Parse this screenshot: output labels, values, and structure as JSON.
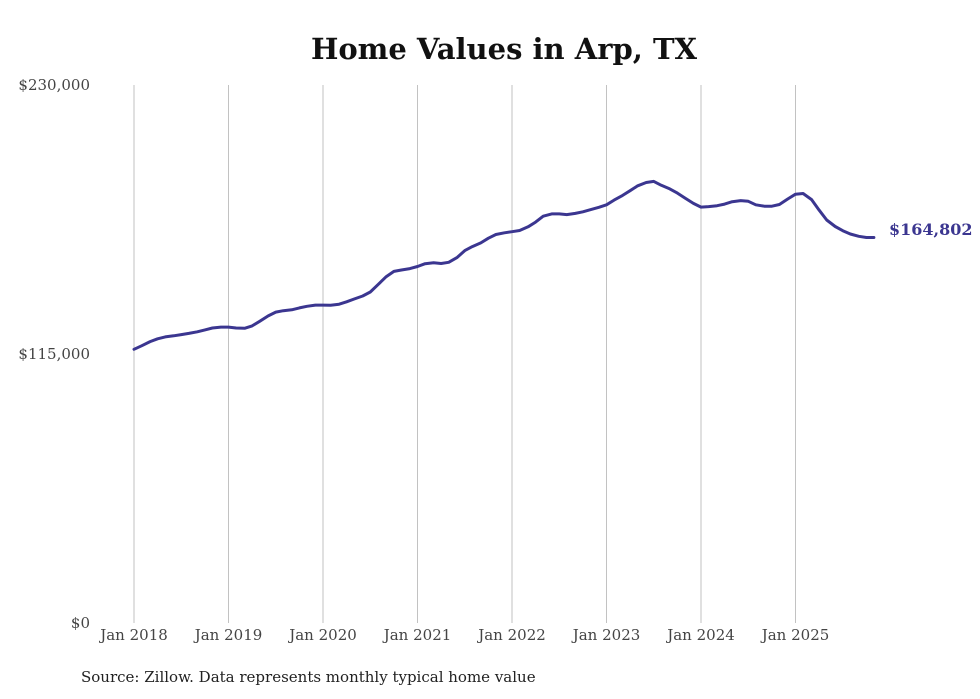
{
  "colors": {
    "line": "#3b3690",
    "end_label": "#3b3690"
  },
  "chart_data": {
    "type": "line",
    "title": "Home Values in Arp, TX",
    "xlabel": "",
    "ylabel": "",
    "ylim": [
      0,
      230000
    ],
    "xlim": [
      2018.0,
      2025.9
    ],
    "y_ticks": [
      {
        "value": 0,
        "label": "$0"
      },
      {
        "value": 115000,
        "label": "$115,000"
      },
      {
        "value": 230000,
        "label": "$230,000"
      }
    ],
    "x_ticks": [
      {
        "value": 2018,
        "label": "Jan 2018"
      },
      {
        "value": 2019,
        "label": "Jan 2019"
      },
      {
        "value": 2020,
        "label": "Jan 2020"
      },
      {
        "value": 2021,
        "label": "Jan 2021"
      },
      {
        "value": 2022,
        "label": "Jan 2022"
      },
      {
        "value": 2023,
        "label": "Jan 2023"
      },
      {
        "value": 2024,
        "label": "Jan 2024"
      },
      {
        "value": 2025,
        "label": "Jan 2025"
      }
    ],
    "grid": {
      "vertical": true,
      "horizontal": false
    },
    "end_label": "$164,802",
    "series": [
      {
        "name": "Typical home value",
        "x": [
          2018.0,
          2018.08,
          2018.17,
          2018.25,
          2018.33,
          2018.42,
          2018.5,
          2018.58,
          2018.67,
          2018.75,
          2018.83,
          2018.92,
          2019.0,
          2019.08,
          2019.17,
          2019.25,
          2019.33,
          2019.42,
          2019.5,
          2019.58,
          2019.67,
          2019.75,
          2019.83,
          2019.92,
          2020.0,
          2020.08,
          2020.17,
          2020.25,
          2020.33,
          2020.42,
          2020.5,
          2020.58,
          2020.67,
          2020.75,
          2020.83,
          2020.92,
          2021.0,
          2021.08,
          2021.17,
          2021.25,
          2021.33,
          2021.42,
          2021.5,
          2021.58,
          2021.67,
          2021.75,
          2021.83,
          2021.92,
          2022.0,
          2022.08,
          2022.17,
          2022.25,
          2022.33,
          2022.42,
          2022.5,
          2022.58,
          2022.67,
          2022.75,
          2022.83,
          2022.92,
          2023.0,
          2023.08,
          2023.17,
          2023.25,
          2023.33,
          2023.42,
          2023.5,
          2023.58,
          2023.67,
          2023.75,
          2023.83,
          2023.92,
          2024.0,
          2024.08,
          2024.17,
          2024.25,
          2024.33,
          2024.42,
          2024.5,
          2024.58,
          2024.67,
          2024.75,
          2024.83,
          2024.92,
          2025.0,
          2025.08,
          2025.17,
          2025.25,
          2025.33,
          2025.42,
          2025.5,
          2025.58,
          2025.67,
          2025.75,
          2025.83
        ],
        "values": [
          117000,
          118500,
          120300,
          121500,
          122300,
          122800,
          123300,
          123800,
          124500,
          125300,
          126100,
          126500,
          126500,
          126100,
          126000,
          127000,
          129000,
          131300,
          132900,
          133500,
          133900,
          134700,
          135400,
          135900,
          135900,
          135800,
          136300,
          137300,
          138500,
          139800,
          141500,
          144600,
          148100,
          150300,
          150900,
          151500,
          152400,
          153600,
          154000,
          153700,
          154200,
          156300,
          159200,
          160900,
          162500,
          164500,
          166100,
          166800,
          167300,
          167800,
          169400,
          171400,
          173900,
          174900,
          174900,
          174600,
          175100,
          175800,
          176700,
          177700,
          178800,
          180800,
          182800,
          184800,
          186900,
          188300,
          188800,
          187100,
          185600,
          183800,
          181700,
          179400,
          177800,
          178000,
          178400,
          179100,
          180100,
          180600,
          180300,
          178800,
          178200,
          178200,
          178900,
          181300,
          183300,
          183600,
          181000,
          176500,
          172300,
          169500,
          167700,
          166300,
          165300,
          164800,
          164802
        ]
      }
    ]
  },
  "source_note": "Source: Zillow. Data represents monthly typical home value"
}
